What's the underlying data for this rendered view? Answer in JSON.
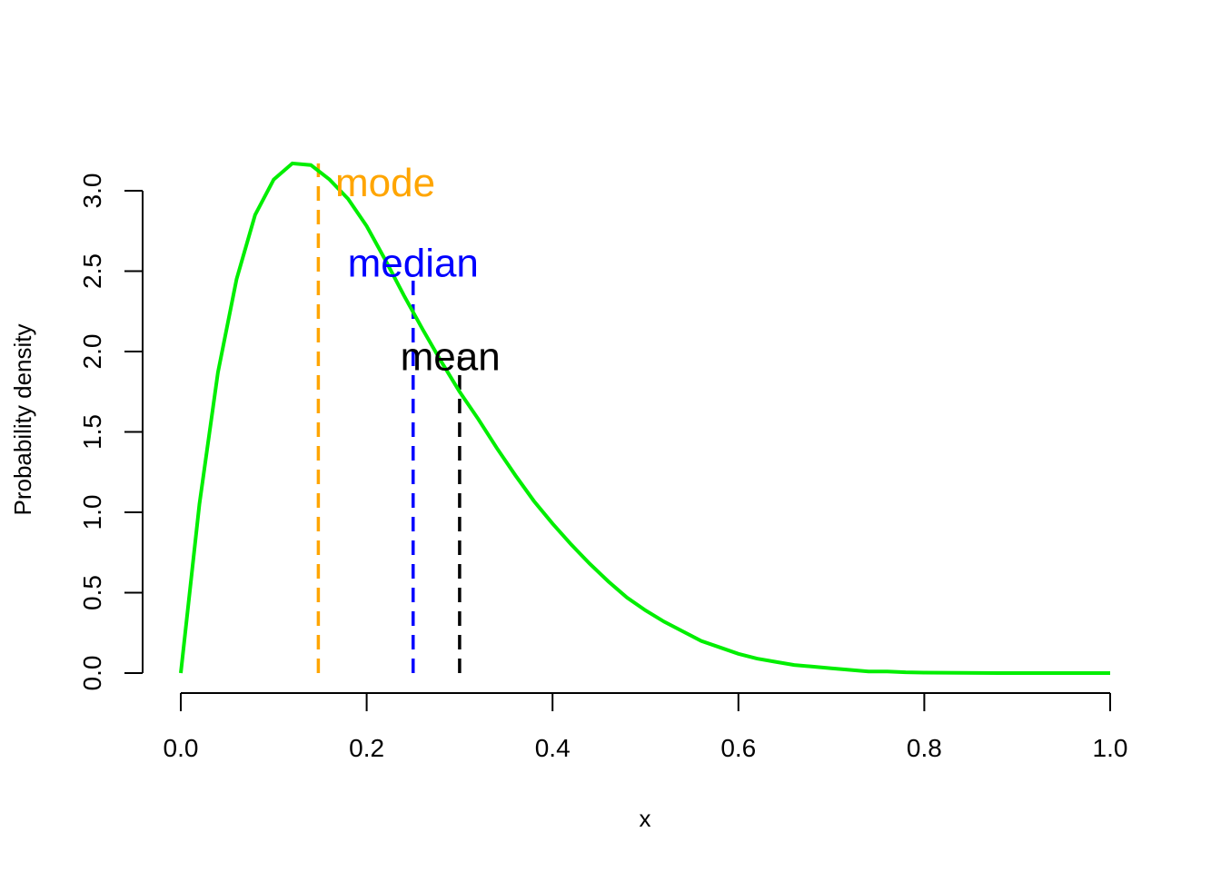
{
  "chart_data": {
    "type": "line",
    "title": "",
    "xlabel": "x",
    "ylabel": "Probability density",
    "xlim": [
      0,
      1
    ],
    "ylim": [
      0,
      3.17
    ],
    "x_ticks": [
      0,
      0.2,
      0.4,
      0.6,
      0.8,
      1
    ],
    "x_tick_labels": [
      "0.0",
      "0.2",
      "0.4",
      "0.6",
      "0.8",
      "1.0"
    ],
    "y_ticks": [
      0,
      0.5,
      1,
      1.5,
      2,
      2.5,
      3
    ],
    "y_tick_labels": [
      "0.0",
      "0.5",
      "1.0",
      "1.5",
      "2.0",
      "2.5",
      "3.0"
    ],
    "grid": false,
    "series": [
      {
        "color": "#00ee00",
        "x": [
          0,
          0.02,
          0.04,
          0.06,
          0.08,
          0.1,
          0.12,
          0.14,
          0.16,
          0.18,
          0.2,
          0.22,
          0.24,
          0.26,
          0.28,
          0.3,
          0.32,
          0.34,
          0.36,
          0.38,
          0.4,
          0.42,
          0.44,
          0.46,
          0.48,
          0.5,
          0.52,
          0.54,
          0.56,
          0.58,
          0.6,
          0.62,
          0.64,
          0.66,
          0.68,
          0.7,
          0.72,
          0.74,
          0.76,
          0.78,
          0.8,
          0.82,
          0.84,
          0.86,
          0.88,
          0.9,
          0.92,
          0.94,
          0.96,
          0.98,
          1
        ],
        "y": [
          0,
          1.05,
          1.87,
          2.45,
          2.85,
          3.07,
          3.17,
          3.16,
          3.07,
          2.95,
          2.78,
          2.57,
          2.35,
          2.14,
          1.94,
          1.75,
          1.58,
          1.4,
          1.23,
          1.07,
          0.93,
          0.8,
          0.68,
          0.57,
          0.47,
          0.39,
          0.32,
          0.26,
          0.2,
          0.16,
          0.12,
          0.09,
          0.07,
          0.05,
          0.04,
          0.03,
          0.02,
          0.01,
          0.01,
          0.005,
          0.003,
          0.002,
          0.001,
          0.0005,
          0.0002,
          0.0001,
          0,
          0,
          0,
          0,
          0
        ]
      }
    ],
    "vlines": [
      {
        "label": "mode",
        "x": 0.148,
        "y_top": 3.17,
        "label_x": 0.22,
        "label_y": 3.05,
        "color": "#ffa500"
      },
      {
        "label": "median",
        "x": 0.25,
        "y_top": 2.47,
        "label_x": 0.25,
        "label_y": 2.55,
        "color": "#0000ff"
      },
      {
        "label": "mean",
        "x": 0.3,
        "y_top": 1.97,
        "label_x": 0.29,
        "label_y": 1.97,
        "color": "#000000"
      }
    ]
  }
}
